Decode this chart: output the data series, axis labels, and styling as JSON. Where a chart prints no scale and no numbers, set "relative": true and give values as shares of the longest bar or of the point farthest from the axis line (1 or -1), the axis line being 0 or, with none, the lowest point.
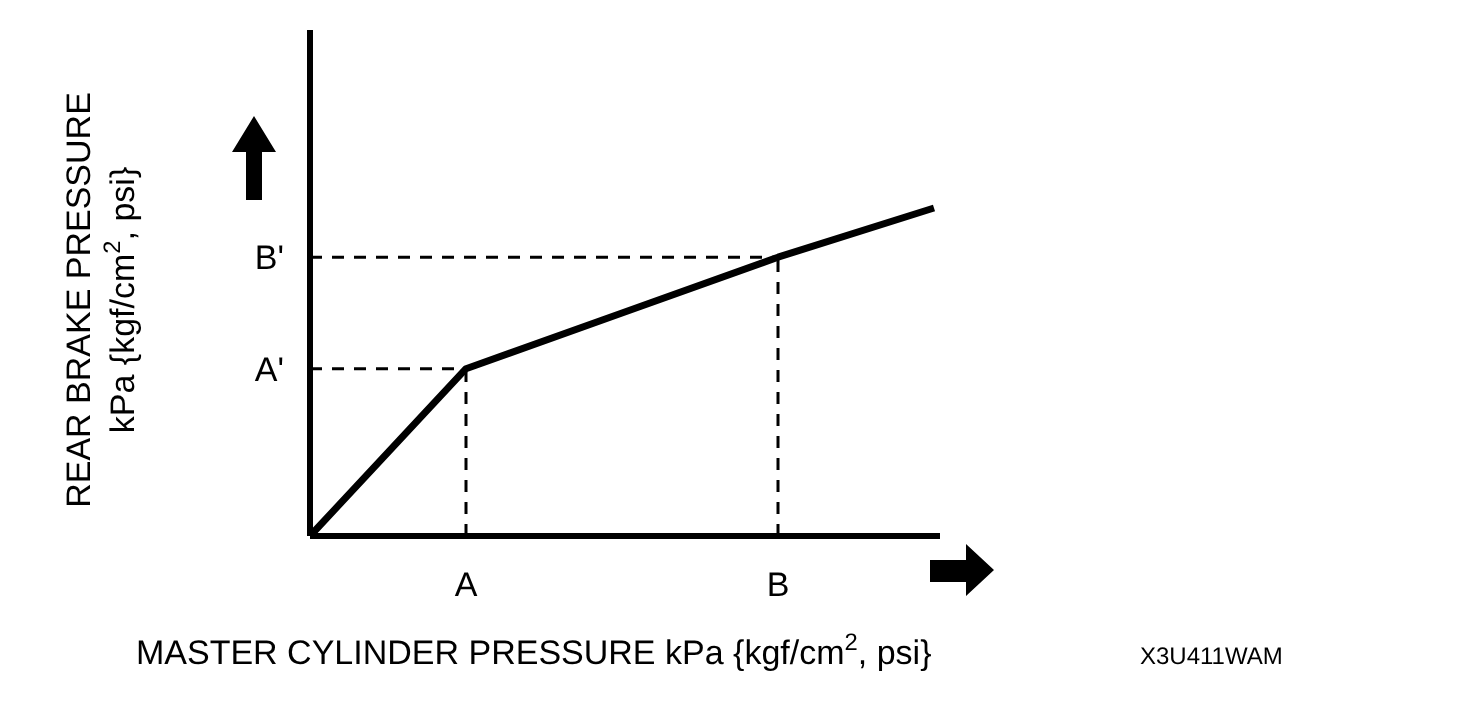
{
  "chart_data": {
    "type": "line",
    "relative": true,
    "xlabel": "MASTER CYLINDER PRESSURE kPa {kgf/cm$^{2}$, psi}",
    "ylabel": "REAR BRAKE PRESSURE\nkPa {kgf/cm$^{2}$, psi}",
    "categories": [
      null,
      "A",
      null,
      "B",
      null
    ],
    "series": [
      {
        "color": "#000000",
        "values": [
          0,
          0.51,
          0.68,
          0.85,
          1
        ]
      }
    ],
    "ref_lines": [
      {
        "axis": "x",
        "value": "A",
        "line_style": "dashed"
      },
      {
        "axis": "x",
        "value": "B",
        "line_style": "dashed"
      },
      {
        "axis": "y",
        "value": 0.51,
        "label": "A'",
        "line_style": "dashed"
      },
      {
        "axis": "y",
        "value": 0.85,
        "label": "B'",
        "line_style": "dashed"
      }
    ],
    "annotations": [
      "X3U411WAM"
    ],
    "tick_labels": "x",
    "line_style": "solid"
  }
}
